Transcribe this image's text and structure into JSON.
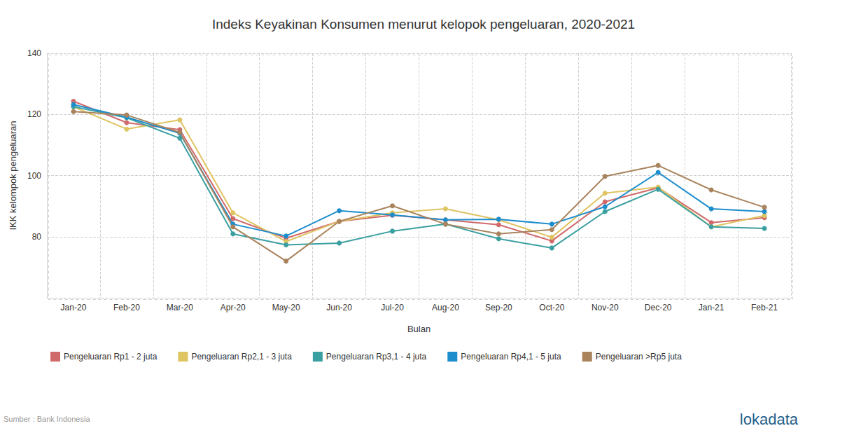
{
  "chart_data": {
    "type": "line",
    "title": "Indeks Keyakinan Konsumen menurut kelopok pengeluaran, 2020-2021",
    "x_label": "Bulan",
    "y_label": "IKK kelompok pengeluaran",
    "source": "Sumber : Bank Indonesia",
    "brand": "lokadata",
    "categories": [
      "Jan-20",
      "Feb-20",
      "Mar-20",
      "Apr-20",
      "May-20",
      "Jun-20",
      "Jul-20",
      "Aug-20",
      "Sep-20",
      "Oct-20",
      "Nov-20",
      "Dec-20",
      "Jan-21",
      "Feb-21"
    ],
    "series": [
      {
        "name": "Pengeluaran Rp1 - 2 juta",
        "color": "#d0696a",
        "values": [
          124.3,
          117.3,
          115,
          85.9,
          79.5,
          85,
          87,
          85.5,
          83.9,
          78.6,
          91.4,
          96,
          84.6,
          86.2
        ]
      },
      {
        "name": "Pengeluaran Rp2,1 - 3 juta",
        "color": "#dfc462",
        "values": [
          122.5,
          115.2,
          118.2,
          87.8,
          78.4,
          85,
          87.8,
          89.1,
          85.5,
          79.8,
          94.2,
          96.2,
          83.2,
          86.9
        ]
      },
      {
        "name": "Pengeluaran Rp3,1 - 4 juta",
        "color": "#3a9fa0",
        "values": [
          122.5,
          118.9,
          112.2,
          80.9,
          77.3,
          77.9,
          81.8,
          84.1,
          79.3,
          76.3,
          88.2,
          95.5,
          83.2,
          82.7
        ]
      },
      {
        "name": "Pengeluaran Rp4,1 - 5 juta",
        "color": "#1d8dcd",
        "values": [
          123.2,
          119.1,
          113.8,
          84.1,
          80.2,
          88.5,
          87.1,
          85.5,
          85.7,
          84.1,
          89.8,
          101,
          89.1,
          88.2
        ]
      },
      {
        "name": "Pengeluaran >Rp5 juta",
        "color": "#a8835c",
        "values": [
          120.9,
          119.8,
          114.1,
          83.2,
          72,
          85,
          90.1,
          84.1,
          80.9,
          82.3,
          99.7,
          103.3,
          95.3,
          89.6
        ]
      }
    ],
    "ylim": [
      60,
      140
    ],
    "yticks": [
      80,
      100,
      120,
      140
    ],
    "grid": true,
    "legend": "bottom-left",
    "marker": "circle"
  }
}
